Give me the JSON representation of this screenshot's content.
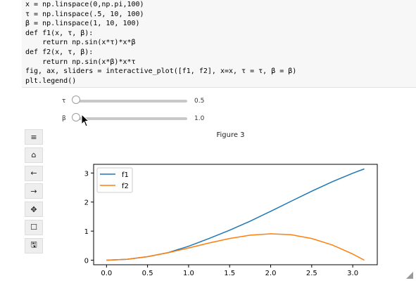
{
  "code": {
    "lines": [
      "x = np.linspace(0,np.pi,100)",
      "τ = np.linspace(.5, 10, 100)",
      "β = np.linspace(1, 10, 100)",
      "def f1(x, τ, β):",
      "    return np.sin(x*τ)*x*β",
      "def f2(x, τ, β):",
      "    return np.sin(x*β)*x*τ",
      "fig, ax, sliders = interactive_plot([f1, f2], x=x, τ = τ, β = β)",
      "plt.legend()"
    ]
  },
  "sliders": [
    {
      "label": "τ",
      "value": "0.5",
      "position": 0.0
    },
    {
      "label": "β",
      "value": "1.0",
      "position": 0.0
    }
  ],
  "toolbar": {
    "buttons": [
      {
        "name": "menu-icon",
        "glyph": "≡"
      },
      {
        "name": "home-icon",
        "glyph": "⌂"
      },
      {
        "name": "back-arrow-icon",
        "glyph": "←"
      },
      {
        "name": "forward-arrow-icon",
        "glyph": "→"
      },
      {
        "name": "pan-icon",
        "glyph": "✥"
      },
      {
        "name": "zoom-rect-icon",
        "glyph": "☐"
      },
      {
        "name": "save-icon",
        "glyph": "🖫"
      }
    ]
  },
  "figure": {
    "title": "Figure 3"
  },
  "chart_data": {
    "type": "line",
    "title": "",
    "xlabel": "",
    "ylabel": "",
    "xlim": [
      -0.157,
      3.299
    ],
    "ylim": [
      -0.157,
      3.299
    ],
    "xticks": [
      "0.0",
      "0.5",
      "1.0",
      "1.5",
      "2.0",
      "2.5",
      "3.0"
    ],
    "yticks": [
      "0",
      "1",
      "2",
      "3"
    ],
    "legend": "top-left",
    "grid": false,
    "series": [
      {
        "name": "f1",
        "color": "#1f77b4",
        "x": [
          0,
          0.25,
          0.5,
          0.75,
          1.0,
          1.25,
          1.5,
          1.75,
          2.0,
          2.25,
          2.5,
          2.75,
          3.0,
          3.1416
        ],
        "y": [
          0,
          0.031,
          0.12,
          0.262,
          0.479,
          0.748,
          1.031,
          1.345,
          1.683,
          2.031,
          2.374,
          2.7,
          2.993,
          3.142
        ]
      },
      {
        "name": "f2",
        "color": "#ff7f0e",
        "x": [
          0,
          0.25,
          0.5,
          0.75,
          1.0,
          1.25,
          1.5,
          1.75,
          2.0,
          2.25,
          2.5,
          2.75,
          3.0,
          3.1416
        ],
        "y": [
          0,
          0.031,
          0.12,
          0.256,
          0.421,
          0.593,
          0.748,
          0.861,
          0.909,
          0.875,
          0.748,
          0.525,
          0.212,
          0.0
        ]
      }
    ]
  }
}
